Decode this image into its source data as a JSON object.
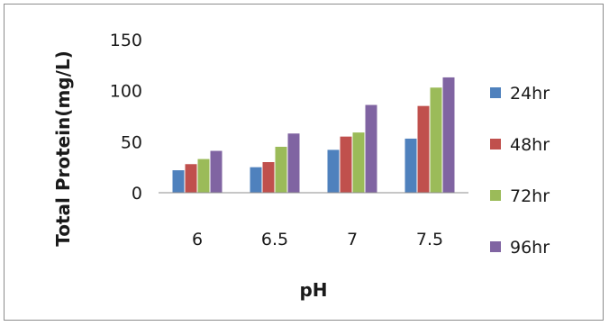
{
  "chart_data": {
    "type": "bar",
    "title": "",
    "xlabel": "pH",
    "ylabel": "Total Protein(mg/L)",
    "categories": [
      "6",
      "6.5",
      "7",
      "7.5"
    ],
    "series": [
      {
        "name": "24hr",
        "color": "#4f81bd",
        "values": [
          22,
          25,
          42,
          53
        ]
      },
      {
        "name": "48hr",
        "color": "#c0504d",
        "values": [
          28,
          30,
          55,
          85
        ]
      },
      {
        "name": "72hr",
        "color": "#9bbb59",
        "values": [
          33,
          45,
          59,
          103
        ]
      },
      {
        "name": "96hr",
        "color": "#8064a2",
        "values": [
          41,
          58,
          86,
          113
        ]
      }
    ],
    "ylim": [
      0,
      150
    ],
    "yticks": [
      "0",
      "50",
      "100",
      "150"
    ],
    "grid": false,
    "legend_position": "right"
  }
}
